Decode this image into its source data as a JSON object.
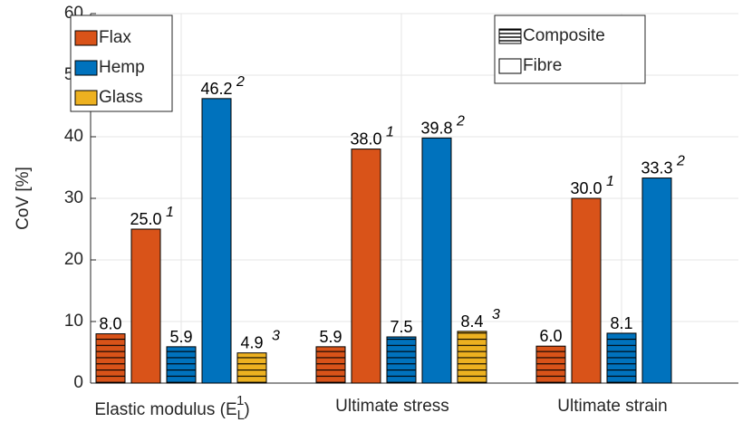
{
  "chart_data": {
    "type": "bar",
    "ylabel": "CoV [%]",
    "categories": [
      [
        "Elastic modulus (E",
        "L",
        "1",
        ")"
      ],
      "Ultimate stress",
      "Ultimate strain"
    ],
    "materials": [
      {
        "name": "Flax",
        "color": "#d95319"
      },
      {
        "name": "Hemp",
        "color": "#0072bd"
      },
      {
        "name": "Glass",
        "color": "#edb120"
      }
    ],
    "types": [
      {
        "name": "Composite",
        "hatch": true
      },
      {
        "name": "Fibre",
        "hatch": false
      }
    ],
    "series": [
      {
        "material": 0,
        "type": 0,
        "values": [
          8.0,
          5.9,
          6.0
        ],
        "value_labels": [
          "8.0",
          "5.9",
          "6.0"
        ]
      },
      {
        "material": 0,
        "type": 1,
        "values": [
          25.0,
          38.0,
          30.0
        ],
        "value_labels": [
          "25.0",
          "38.0",
          "30.0"
        ],
        "superscripts": [
          "1",
          "1",
          "1"
        ]
      },
      {
        "material": 1,
        "type": 0,
        "values": [
          5.9,
          7.5,
          8.1
        ],
        "value_labels": [
          "5.9",
          "7.5",
          "8.1"
        ]
      },
      {
        "material": 1,
        "type": 1,
        "values": [
          46.2,
          39.8,
          33.3
        ],
        "value_labels": [
          "46.2",
          "39.8",
          "33.3"
        ],
        "superscripts": [
          "2",
          "2",
          "2"
        ]
      },
      {
        "material": 2,
        "type": 0,
        "values": [
          4.9,
          8.4,
          null
        ],
        "value_labels": [
          "4.9",
          "8.4",
          null
        ],
        "superscripts": [
          "3",
          "3",
          null
        ]
      }
    ],
    "ylim": [
      0,
      60
    ],
    "yticks": [
      0,
      10,
      20,
      30,
      40,
      50,
      60
    ],
    "grid": true
  }
}
